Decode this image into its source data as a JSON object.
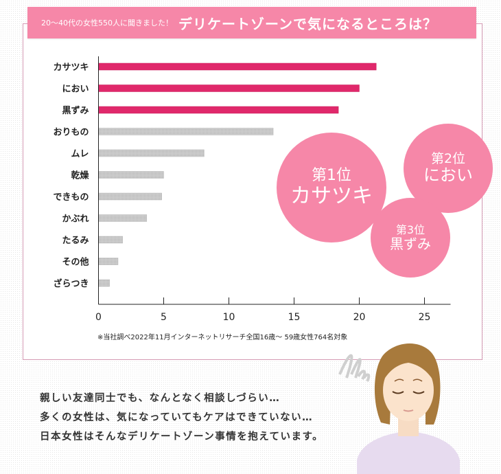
{
  "banner": {
    "subtitle": "20〜40代の女性550人に聞きました！",
    "title": "デリケートゾーンで気になるところは？"
  },
  "chart_data": {
    "type": "bar",
    "orientation": "horizontal",
    "categories": [
      "カサツキ",
      "におい",
      "黒ずみ",
      "おりもの",
      "ムレ",
      "乾燥",
      "できもの",
      "かぶれ",
      "たるみ",
      "その他",
      "ざらつき"
    ],
    "values": [
      21.3,
      20.0,
      18.4,
      13.4,
      8.1,
      5.0,
      4.85,
      3.7,
      1.85,
      1.5,
      0.85
    ],
    "highlight_top": 3,
    "xlim": [
      0,
      27
    ],
    "xticks": [
      "0",
      "5",
      "10",
      "15",
      "20",
      "25"
    ],
    "grid": false,
    "colors": {
      "highlight": "#e0286b",
      "normal": "#c4c4c4"
    }
  },
  "note": "※当社調べ2022年11月インターネットリサーチ全国16歳〜 59歳女性764名対象",
  "rankings": [
    {
      "rank": "第1位",
      "name": "カサツキ"
    },
    {
      "rank": "第2位",
      "name": "におい"
    },
    {
      "rank": "第3位",
      "name": "黒ずみ"
    }
  ],
  "message": [
    "親しい友達同士でも、なんとなく相談しづらい…",
    "多くの女性は、気になっていてもケアはできていない…",
    "日本女性はそんなデリケートゾーン事情を抱えています。"
  ]
}
